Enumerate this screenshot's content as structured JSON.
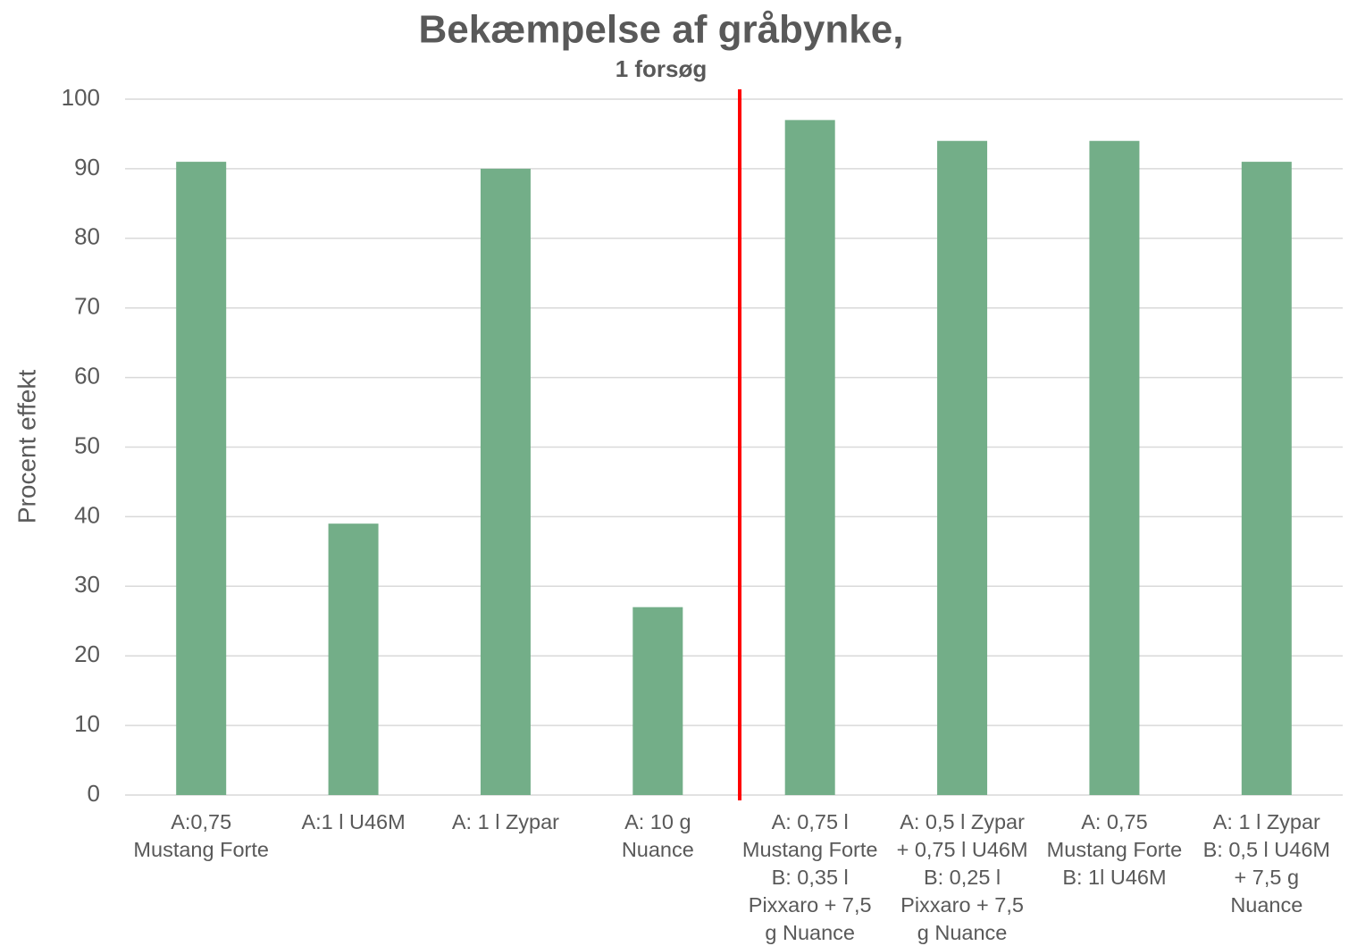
{
  "chart_data": {
    "type": "bar",
    "title": "Bekæmpelse af gråbynke,",
    "subtitle": "1 forsøg",
    "y_label": "Procent effekt",
    "categories": [
      "A:0,75\nMustang Forte",
      "A:1 l U46M",
      "A: 1 l Zypar",
      "A: 10 g\nNuance",
      "A: 0,75 l\nMustang Forte\nB: 0,35 l\nPixxaro + 7,5\ng Nuance",
      "A: 0,5 l Zypar\n+ 0,75 l U46M\nB: 0,25 l\nPixxaro + 7,5\ng Nuance",
      "A: 0,75\nMustang Forte\nB: 1l U46M",
      "A: 1 l Zypar\nB: 0,5 l U46M\n+ 7,5 g\nNuance"
    ],
    "values": [
      91,
      39,
      90,
      27,
      97,
      94,
      94,
      91
    ],
    "color": "#73ae88",
    "ylim": [
      0,
      100
    ],
    "yticks": [
      0,
      10,
      20,
      30,
      40,
      50,
      60,
      70,
      80,
      90,
      100
    ],
    "grid": true
  }
}
